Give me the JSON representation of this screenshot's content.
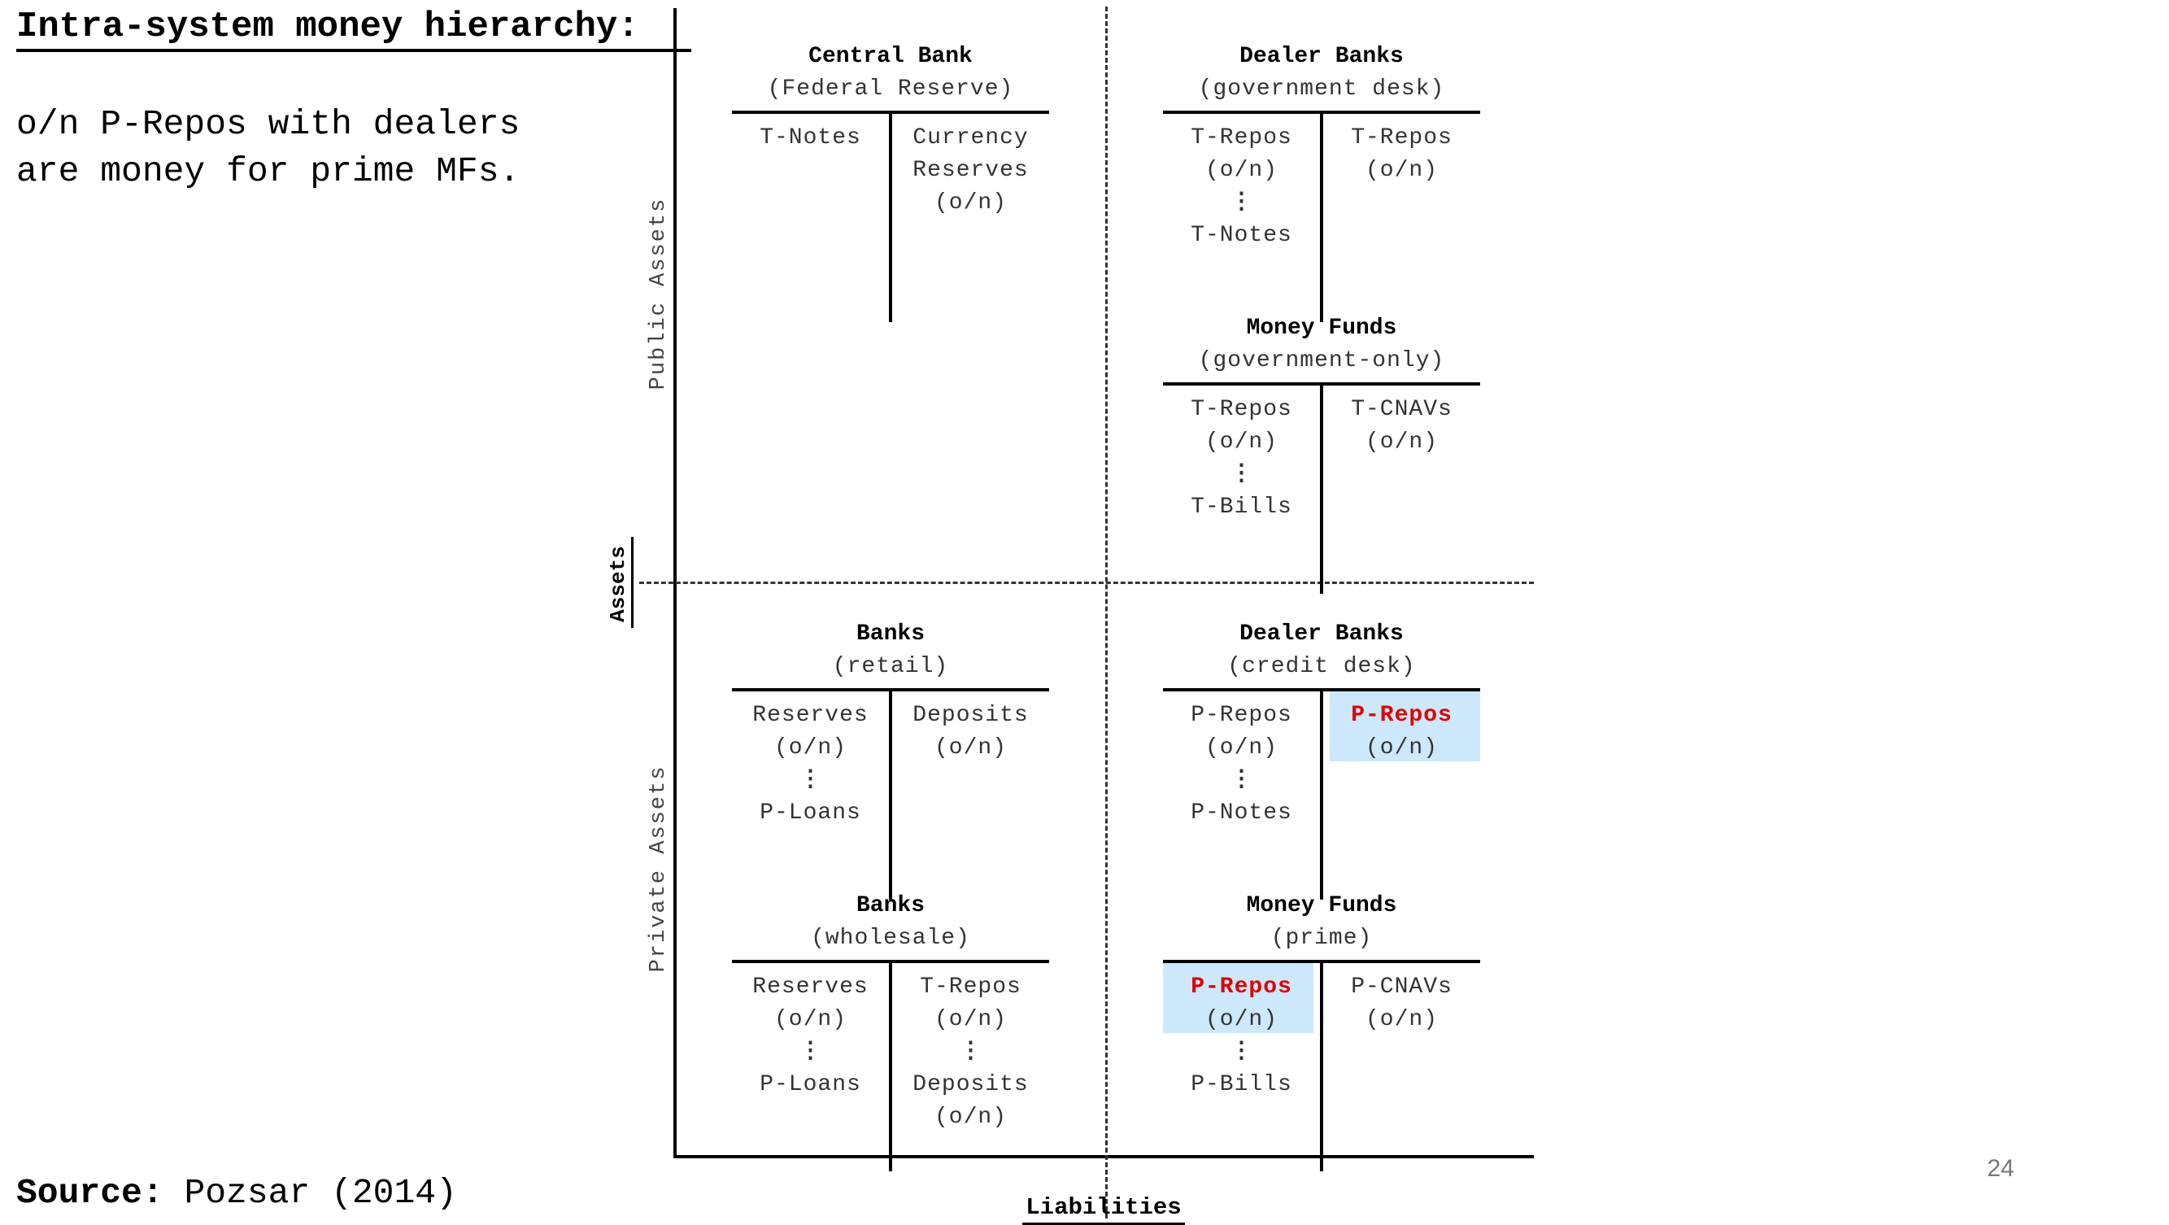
{
  "title": "Intra-system money hierarchy:",
  "subtitle": "o/n P-Repos with dealers\nare money for prime MFs.",
  "source_label": "Source:",
  "source_text": " Pozsar (2014)",
  "page_number": "24",
  "axes": {
    "public_assets": "Public Assets",
    "private_assets": "Private Assets",
    "assets": "Assets",
    "liabilities": "Liabilities"
  },
  "accounts": {
    "central_bank": {
      "name": "Central Bank",
      "sub": "(Federal Reserve)",
      "assets": [
        "T-Notes"
      ],
      "liabilities": [
        "Currency",
        "Reserves",
        "(o/n)"
      ]
    },
    "dealer_gov": {
      "name": "Dealer Banks",
      "sub": "(government desk)",
      "assets": [
        "T-Repos",
        "(o/n)",
        "⋮",
        "T-Notes"
      ],
      "liabilities": [
        "T-Repos",
        "(o/n)"
      ]
    },
    "mf_gov": {
      "name": "Money Funds",
      "sub": "(government-only)",
      "assets": [
        "T-Repos",
        "(o/n)",
        "⋮",
        "T-Bills"
      ],
      "liabilities": [
        "T-CNAVs",
        "(o/n)"
      ]
    },
    "banks_retail": {
      "name": "Banks",
      "sub": "(retail)",
      "assets": [
        "Reserves",
        "(o/n)",
        "⋮",
        "P-Loans"
      ],
      "liabilities": [
        "Deposits",
        "(o/n)"
      ]
    },
    "dealer_credit": {
      "name": "Dealer Banks",
      "sub": "(credit desk)",
      "assets": [
        "P-Repos",
        "(o/n)",
        "⋮",
        "P-Notes"
      ],
      "liabilities": [
        "P-Repos",
        "(o/n)"
      ]
    },
    "banks_wholesale": {
      "name": "Banks",
      "sub": "(wholesale)",
      "assets": [
        "Reserves",
        "(o/n)",
        "⋮",
        "P-Loans"
      ],
      "liabilities": [
        "T-Repos",
        "(o/n)",
        "⋮",
        "Deposits",
        "(o/n)"
      ]
    },
    "mf_prime": {
      "name": "Money Funds",
      "sub": "(prime)",
      "assets": [
        "P-Repos",
        "(o/n)",
        "⋮",
        "P-Bills"
      ],
      "liabilities": [
        "P-CNAVs",
        "(o/n)"
      ]
    }
  },
  "colors": {
    "highlight_bg": "#cce8fa",
    "highlight_text": "#e00000"
  }
}
